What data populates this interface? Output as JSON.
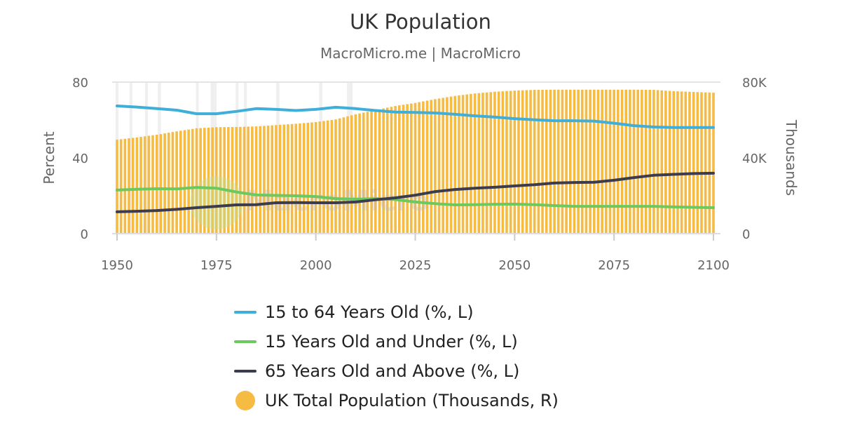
{
  "title": "UK Population",
  "subtitle": "MacroMicro.me | MacroMicro",
  "watermark": "MacroMicro",
  "chart_data": {
    "type": "bar+line",
    "title": "UK Population",
    "subtitle": "MacroMicro.me | MacroMicro",
    "x_range": [
      1950,
      2100
    ],
    "x_ticks": [
      "1950",
      "1975",
      "2000",
      "2025",
      "2050",
      "2075",
      "2100"
    ],
    "y_left": {
      "label": "Percent",
      "range": [
        0,
        80
      ],
      "ticks": [
        "0",
        "40",
        "80"
      ]
    },
    "y_right": {
      "label": "Thousands",
      "range": [
        0,
        80000
      ],
      "ticks": [
        "0",
        "40K",
        "80K"
      ]
    },
    "grid": false,
    "legend_position": "bottom",
    "shaded_periods": [
      [
        1950,
        1950.6
      ],
      [
        1953.5,
        1954.2
      ],
      [
        1957.4,
        1958.1
      ],
      [
        1960.6,
        1961.4
      ],
      [
        1970.2,
        1970.9
      ],
      [
        1973.9,
        1975.4
      ],
      [
        1980.2,
        1980.9
      ],
      [
        1982.3,
        1983
      ],
      [
        1990.4,
        1991.2
      ],
      [
        2001.2,
        2002
      ],
      [
        2008.2,
        2009.6
      ]
    ],
    "series": [
      {
        "name": "15 to 64 Years Old (%, L)",
        "type": "line",
        "axis": "left",
        "color": "#3fafd9",
        "points": [
          [
            1950,
            67.4
          ],
          [
            1955,
            66.8
          ],
          [
            1960,
            66
          ],
          [
            1965,
            65.2
          ],
          [
            1970,
            63.3
          ],
          [
            1975,
            63.3
          ],
          [
            1980,
            64.5
          ],
          [
            1985,
            66
          ],
          [
            1990,
            65.6
          ],
          [
            1995,
            65
          ],
          [
            2000,
            65.6
          ],
          [
            2005,
            66.7
          ],
          [
            2010,
            66
          ],
          [
            2015,
            65
          ],
          [
            2020,
            64.2
          ],
          [
            2025,
            64
          ],
          [
            2030,
            63.7
          ],
          [
            2035,
            63
          ],
          [
            2040,
            62.2
          ],
          [
            2045,
            61.5
          ],
          [
            2050,
            60.7
          ],
          [
            2055,
            60.1
          ],
          [
            2060,
            59.6
          ],
          [
            2065,
            59.6
          ],
          [
            2070,
            59.4
          ],
          [
            2075,
            58.3
          ],
          [
            2080,
            57
          ],
          [
            2085,
            56.3
          ],
          [
            2090,
            56
          ],
          [
            2095,
            56
          ],
          [
            2100,
            56
          ]
        ]
      },
      {
        "name": "15 Years Old and Under (%, L)",
        "type": "line",
        "axis": "left",
        "color": "#6cc95f",
        "points": [
          [
            1950,
            23
          ],
          [
            1955,
            23.4
          ],
          [
            1960,
            23.7
          ],
          [
            1965,
            23.6
          ],
          [
            1970,
            24.4
          ],
          [
            1975,
            24
          ],
          [
            1980,
            22
          ],
          [
            1985,
            20.4
          ],
          [
            1990,
            20.2
          ],
          [
            1995,
            20
          ],
          [
            2000,
            19.6
          ],
          [
            2005,
            18.5
          ],
          [
            2010,
            18.2
          ],
          [
            2015,
            18.5
          ],
          [
            2020,
            18
          ],
          [
            2025,
            16.7
          ],
          [
            2030,
            15.8
          ],
          [
            2035,
            15.2
          ],
          [
            2040,
            15.3
          ],
          [
            2045,
            15.5
          ],
          [
            2050,
            15.6
          ],
          [
            2055,
            15.3
          ],
          [
            2060,
            14.8
          ],
          [
            2065,
            14.4
          ],
          [
            2070,
            14.4
          ],
          [
            2075,
            14.4
          ],
          [
            2080,
            14.4
          ],
          [
            2085,
            14.4
          ],
          [
            2090,
            14.1
          ],
          [
            2095,
            13.9
          ],
          [
            2100,
            13.7
          ]
        ]
      },
      {
        "name": "65 Years Old and Above (%, L)",
        "type": "line",
        "axis": "left",
        "color": "#3b3d4f",
        "points": [
          [
            1950,
            11.5
          ],
          [
            1955,
            11.8
          ],
          [
            1960,
            12.2
          ],
          [
            1965,
            12.8
          ],
          [
            1970,
            13.7
          ],
          [
            1975,
            14.4
          ],
          [
            1980,
            15.2
          ],
          [
            1985,
            15.3
          ],
          [
            1990,
            16.3
          ],
          [
            1995,
            16.4
          ],
          [
            2000,
            16.3
          ],
          [
            2005,
            16.3
          ],
          [
            2010,
            16.7
          ],
          [
            2015,
            17.9
          ],
          [
            2020,
            18.9
          ],
          [
            2025,
            20.3
          ],
          [
            2030,
            22.2
          ],
          [
            2035,
            23.3
          ],
          [
            2040,
            24
          ],
          [
            2045,
            24.5
          ],
          [
            2050,
            25.2
          ],
          [
            2055,
            25.8
          ],
          [
            2060,
            26.7
          ],
          [
            2065,
            27
          ],
          [
            2070,
            27.1
          ],
          [
            2075,
            28.2
          ],
          [
            2080,
            29.6
          ],
          [
            2085,
            30.8
          ],
          [
            2090,
            31.3
          ],
          [
            2095,
            31.7
          ],
          [
            2100,
            31.9
          ]
        ]
      },
      {
        "name": "UK Total Population (Thousands, R)",
        "type": "bar",
        "axis": "right",
        "color": "#f6bb43",
        "points": [
          [
            1950,
            49600
          ],
          [
            1955,
            50800
          ],
          [
            1960,
            52200
          ],
          [
            1965,
            54000
          ],
          [
            1970,
            55600
          ],
          [
            1975,
            56200
          ],
          [
            1980,
            56300
          ],
          [
            1985,
            56600
          ],
          [
            1990,
            57300
          ],
          [
            1995,
            58000
          ],
          [
            2000,
            58900
          ],
          [
            2005,
            60300
          ],
          [
            2010,
            63000
          ],
          [
            2015,
            65200
          ],
          [
            2020,
            67400
          ],
          [
            2025,
            69000
          ],
          [
            2030,
            71000
          ],
          [
            2035,
            72700
          ],
          [
            2040,
            74000
          ],
          [
            2045,
            74900
          ],
          [
            2050,
            75500
          ],
          [
            2055,
            75900
          ],
          [
            2060,
            76000
          ],
          [
            2065,
            76000
          ],
          [
            2070,
            76000
          ],
          [
            2075,
            76000
          ],
          [
            2080,
            76000
          ],
          [
            2085,
            75900
          ],
          [
            2090,
            75200
          ],
          [
            2095,
            74800
          ],
          [
            2100,
            74400
          ]
        ]
      }
    ]
  }
}
